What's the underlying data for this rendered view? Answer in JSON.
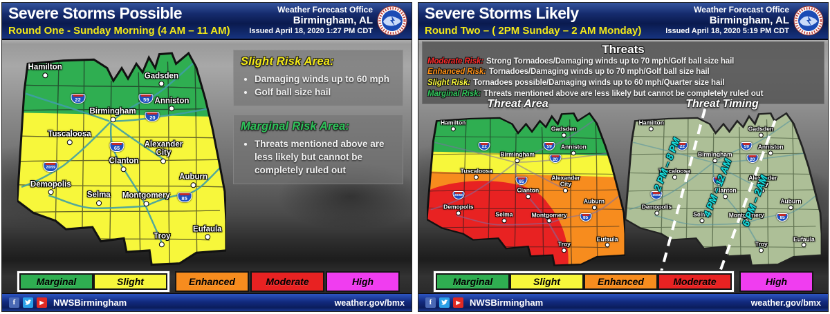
{
  "left_panel": {
    "title": "Severe Storms Possible",
    "subtitle": "Round One - Sunday Morning (4 AM – 11 AM)",
    "office": {
      "line1": "Weather Forecast Office",
      "line2": "Birmingham, AL",
      "issued": "Issued April 18, 2020 1:27 PM CDT"
    },
    "logo": "nws-logo",
    "boxes": [
      {
        "title": "Slight Risk Area:",
        "title_color": "#f3e918",
        "bullets": [
          "Damaging winds up to 60 mph",
          "Golf ball size hail"
        ]
      },
      {
        "title": "Marginal Risk Area:",
        "title_color": "#2fc35a",
        "bullets": [
          "Threats mentioned above are less likely but cannot be completely ruled out"
        ]
      }
    ],
    "legend_active_count": 2
  },
  "right_panel": {
    "title": "Severe Storms Likely",
    "subtitle": "Round Two – ( 2PM Sunday – 2 AM Monday)",
    "office": {
      "line1": "Weather Forecast Office",
      "line2": "Birmingham, AL",
      "issued": "Issued April 18, 2020 5:19 PM CDT"
    },
    "logo": "nws-logo",
    "threats": {
      "title": "Threats",
      "rows": [
        {
          "label": "Moderate Risk:",
          "color": "#ff2a2a",
          "text": "Strong Tornadoes/Damaging winds up to 70 mph/Golf ball size hail"
        },
        {
          "label": "Enhanced Risk:",
          "color": "#ff9015",
          "text": "Tornadoes/Damaging winds up to 70 mph/Golf ball size hail"
        },
        {
          "label": "Slight Risk:",
          "color": "#f9f93c",
          "text": "Tornadoes possible/Damaging winds up to 60 mph/Quarter size hail"
        },
        {
          "label": "Marginal Risk:",
          "color": "#2fc35a",
          "text": "Threats mentioned above are less likely but cannot be completely ruled out"
        }
      ]
    },
    "maps": {
      "area_title": "Threat Area",
      "timing_title": "Threat Timing",
      "timing_labels": [
        "2 PM – 8 PM",
        "4 PM – 12 AM",
        "6 PM – 2AM"
      ],
      "timing_label_color": "#17e2e2"
    },
    "legend_active_count": 4
  },
  "map_data": {
    "cities": [
      {
        "name": "Hamilton",
        "x": 13.3,
        "y": 12.3
      },
      {
        "name": "Gadsden",
        "x": 69.0,
        "y": 16.1
      },
      {
        "name": "Anniston",
        "x": 74.0,
        "y": 27.4
      },
      {
        "name": "Birmingham",
        "x": 45.7,
        "y": 32.3
      },
      {
        "name": "Tuscaloosa",
        "x": 25.0,
        "y": 42.6
      },
      {
        "name": "Alexander City",
        "x": 70.0,
        "y": 51.0,
        "wrap": true
      },
      {
        "name": "Clanton",
        "x": 51.0,
        "y": 54.8
      },
      {
        "name": "Demopolis",
        "x": 16.0,
        "y": 65.2
      },
      {
        "name": "Selma",
        "x": 39.0,
        "y": 70.0
      },
      {
        "name": "Montgomery",
        "x": 61.7,
        "y": 70.3
      },
      {
        "name": "Auburn",
        "x": 84.3,
        "y": 61.9
      },
      {
        "name": "Troy",
        "x": 69.3,
        "y": 88.7
      },
      {
        "name": "Eufaula",
        "x": 91.0,
        "y": 85.5
      }
    ],
    "interstate_shields": [
      {
        "label": "22",
        "x": 29.0,
        "y": 21.6
      },
      {
        "label": "59",
        "x": 61.7,
        "y": 21.6
      },
      {
        "label": "20",
        "x": 64.7,
        "y": 29.7
      },
      {
        "label": "65",
        "x": 47.7,
        "y": 43.5
      },
      {
        "label": "20/59",
        "x": 16.0,
        "y": 52.6
      },
      {
        "label": "85",
        "x": 80.0,
        "y": 66.4
      }
    ]
  },
  "risk_colors": {
    "marginal": "#2fae51",
    "slight": "#f7f73b",
    "enhanced": "#f78c1e",
    "moderate": "#e82222",
    "high": "#f03df0",
    "timing_base": "#adbf97"
  },
  "legend": {
    "items": [
      {
        "label": "Marginal",
        "color": "#2fae51"
      },
      {
        "label": "Slight",
        "color": "#f7f73b"
      },
      {
        "label": "Enhanced",
        "color": "#f78c1e"
      },
      {
        "label": "Moderate",
        "color": "#e82222"
      },
      {
        "label": "High",
        "color": "#f03df0"
      }
    ]
  },
  "footer": {
    "handle": "NWSBirmingham",
    "url": "weather.gov/bmx",
    "icons": [
      {
        "name": "facebook-icon",
        "glyph": "f"
      },
      {
        "name": "twitter-icon",
        "glyph": ""
      },
      {
        "name": "youtube-icon",
        "glyph": "▶"
      }
    ]
  }
}
